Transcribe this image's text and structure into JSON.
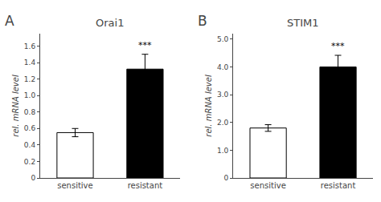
{
  "chart_data": [
    {
      "type": "bar",
      "title": "Orai1",
      "categories": [
        "sensitive",
        "resistant"
      ],
      "values": [
        0.55,
        1.32
      ],
      "errors": [
        0.05,
        0.18
      ],
      "colors": [
        "white",
        "black"
      ],
      "ylabel": "rel. mRNA level",
      "ylim": [
        0,
        1.75
      ],
      "yticks": [
        0,
        0.2,
        0.4,
        0.6,
        0.8,
        {
          "value": 1.0,
          "label": "1.0"
        },
        1.2,
        1.4,
        1.6
      ],
      "grid": false,
      "annotations": [
        {
          "text": "A"
        },
        {
          "text": "***",
          "x": "resistant"
        }
      ]
    },
    {
      "type": "bar",
      "title": "STIM1",
      "categories": [
        "sensitive",
        "resistant"
      ],
      "values": [
        1.8,
        4.0
      ],
      "errors": [
        0.12,
        0.42
      ],
      "colors": [
        "white",
        "black"
      ],
      "ylabel": "rel. mRNA level",
      "ylim": [
        0,
        5.2
      ],
      "yticks": [
        0,
        {
          "value": 1.0,
          "label": "1.0"
        },
        {
          "value": 2.0,
          "label": "2.0"
        },
        {
          "value": 3.0,
          "label": "3.0"
        },
        {
          "value": 4.0,
          "label": "4.0"
        },
        {
          "value": 5.0,
          "label": "5.0"
        }
      ],
      "grid": false,
      "annotations": [
        {
          "text": "B"
        },
        {
          "text": "***",
          "x": "resistant"
        }
      ]
    }
  ]
}
